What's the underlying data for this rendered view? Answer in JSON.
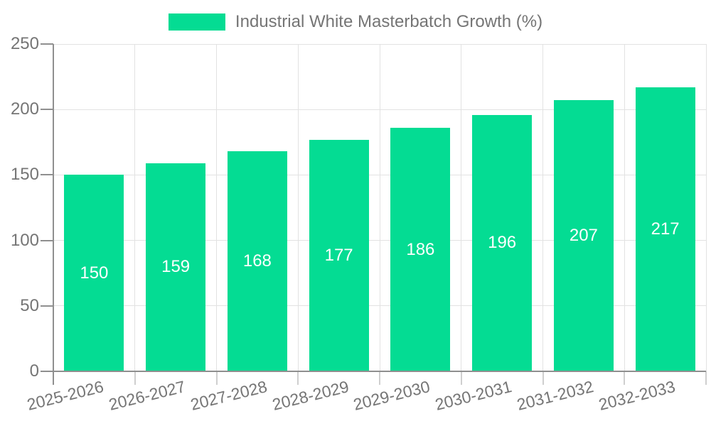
{
  "chart_data": {
    "type": "bar",
    "title": "Industrial White Masterbatch Growth (%)",
    "legend": {
      "position": "top",
      "label": "Industrial White Masterbatch Growth (%)"
    },
    "categories": [
      "2025-2026",
      "2026-2027",
      "2027-2028",
      "2028-2029",
      "2029-2030",
      "2030-2031",
      "2031-2032",
      "2032-2033"
    ],
    "values": [
      150,
      159,
      168,
      177,
      186,
      196,
      207,
      217
    ],
    "xlabel": "",
    "ylabel": "",
    "ylim": [
      0,
      250
    ],
    "yticks": [
      0,
      50,
      100,
      150,
      200,
      250
    ],
    "grid": true,
    "x_tick_rotation_deg": -14,
    "value_labels": "inside-center",
    "colors": {
      "bar": "#04DC93",
      "text": "#757575",
      "grid": "#e2e2e2",
      "axis": "#8f8f8f",
      "tick": "#cfcfcf",
      "value_label": "#ffffff",
      "background": "#ffffff"
    }
  }
}
